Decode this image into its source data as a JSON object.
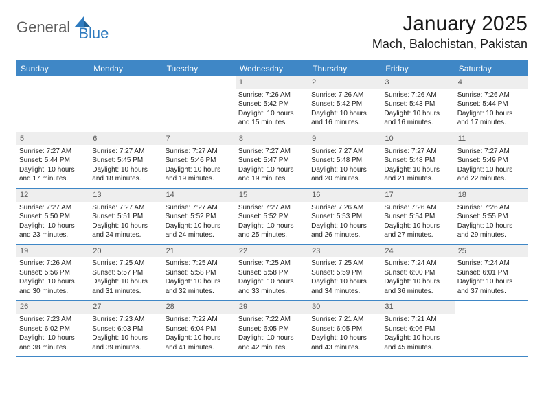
{
  "brand": {
    "word1": "General",
    "word2": "Blue"
  },
  "title": "January 2025",
  "location": "Mach, Balochistan, Pakistan",
  "colors": {
    "header_bg": "#3f87c6",
    "header_text": "#ffffff",
    "daynum_bg": "#eeeeee",
    "border": "#3f87c6",
    "body_text": "#1a1a1a",
    "logo_grey": "#5a5a5a",
    "logo_blue": "#2f7bbf"
  },
  "daysOfWeek": [
    "Sunday",
    "Monday",
    "Tuesday",
    "Wednesday",
    "Thursday",
    "Friday",
    "Saturday"
  ],
  "weeks": [
    [
      {
        "empty": true
      },
      {
        "empty": true
      },
      {
        "empty": true
      },
      {
        "n": "1",
        "sunrise": "Sunrise: 7:26 AM",
        "sunset": "Sunset: 5:42 PM",
        "daylight": "Daylight: 10 hours and 15 minutes."
      },
      {
        "n": "2",
        "sunrise": "Sunrise: 7:26 AM",
        "sunset": "Sunset: 5:42 PM",
        "daylight": "Daylight: 10 hours and 16 minutes."
      },
      {
        "n": "3",
        "sunrise": "Sunrise: 7:26 AM",
        "sunset": "Sunset: 5:43 PM",
        "daylight": "Daylight: 10 hours and 16 minutes."
      },
      {
        "n": "4",
        "sunrise": "Sunrise: 7:26 AM",
        "sunset": "Sunset: 5:44 PM",
        "daylight": "Daylight: 10 hours and 17 minutes."
      }
    ],
    [
      {
        "n": "5",
        "sunrise": "Sunrise: 7:27 AM",
        "sunset": "Sunset: 5:44 PM",
        "daylight": "Daylight: 10 hours and 17 minutes."
      },
      {
        "n": "6",
        "sunrise": "Sunrise: 7:27 AM",
        "sunset": "Sunset: 5:45 PM",
        "daylight": "Daylight: 10 hours and 18 minutes."
      },
      {
        "n": "7",
        "sunrise": "Sunrise: 7:27 AM",
        "sunset": "Sunset: 5:46 PM",
        "daylight": "Daylight: 10 hours and 19 minutes."
      },
      {
        "n": "8",
        "sunrise": "Sunrise: 7:27 AM",
        "sunset": "Sunset: 5:47 PM",
        "daylight": "Daylight: 10 hours and 19 minutes."
      },
      {
        "n": "9",
        "sunrise": "Sunrise: 7:27 AM",
        "sunset": "Sunset: 5:48 PM",
        "daylight": "Daylight: 10 hours and 20 minutes."
      },
      {
        "n": "10",
        "sunrise": "Sunrise: 7:27 AM",
        "sunset": "Sunset: 5:48 PM",
        "daylight": "Daylight: 10 hours and 21 minutes."
      },
      {
        "n": "11",
        "sunrise": "Sunrise: 7:27 AM",
        "sunset": "Sunset: 5:49 PM",
        "daylight": "Daylight: 10 hours and 22 minutes."
      }
    ],
    [
      {
        "n": "12",
        "sunrise": "Sunrise: 7:27 AM",
        "sunset": "Sunset: 5:50 PM",
        "daylight": "Daylight: 10 hours and 23 minutes."
      },
      {
        "n": "13",
        "sunrise": "Sunrise: 7:27 AM",
        "sunset": "Sunset: 5:51 PM",
        "daylight": "Daylight: 10 hours and 24 minutes."
      },
      {
        "n": "14",
        "sunrise": "Sunrise: 7:27 AM",
        "sunset": "Sunset: 5:52 PM",
        "daylight": "Daylight: 10 hours and 24 minutes."
      },
      {
        "n": "15",
        "sunrise": "Sunrise: 7:27 AM",
        "sunset": "Sunset: 5:52 PM",
        "daylight": "Daylight: 10 hours and 25 minutes."
      },
      {
        "n": "16",
        "sunrise": "Sunrise: 7:26 AM",
        "sunset": "Sunset: 5:53 PM",
        "daylight": "Daylight: 10 hours and 26 minutes."
      },
      {
        "n": "17",
        "sunrise": "Sunrise: 7:26 AM",
        "sunset": "Sunset: 5:54 PM",
        "daylight": "Daylight: 10 hours and 27 minutes."
      },
      {
        "n": "18",
        "sunrise": "Sunrise: 7:26 AM",
        "sunset": "Sunset: 5:55 PM",
        "daylight": "Daylight: 10 hours and 29 minutes."
      }
    ],
    [
      {
        "n": "19",
        "sunrise": "Sunrise: 7:26 AM",
        "sunset": "Sunset: 5:56 PM",
        "daylight": "Daylight: 10 hours and 30 minutes."
      },
      {
        "n": "20",
        "sunrise": "Sunrise: 7:25 AM",
        "sunset": "Sunset: 5:57 PM",
        "daylight": "Daylight: 10 hours and 31 minutes."
      },
      {
        "n": "21",
        "sunrise": "Sunrise: 7:25 AM",
        "sunset": "Sunset: 5:58 PM",
        "daylight": "Daylight: 10 hours and 32 minutes."
      },
      {
        "n": "22",
        "sunrise": "Sunrise: 7:25 AM",
        "sunset": "Sunset: 5:58 PM",
        "daylight": "Daylight: 10 hours and 33 minutes."
      },
      {
        "n": "23",
        "sunrise": "Sunrise: 7:25 AM",
        "sunset": "Sunset: 5:59 PM",
        "daylight": "Daylight: 10 hours and 34 minutes."
      },
      {
        "n": "24",
        "sunrise": "Sunrise: 7:24 AM",
        "sunset": "Sunset: 6:00 PM",
        "daylight": "Daylight: 10 hours and 36 minutes."
      },
      {
        "n": "25",
        "sunrise": "Sunrise: 7:24 AM",
        "sunset": "Sunset: 6:01 PM",
        "daylight": "Daylight: 10 hours and 37 minutes."
      }
    ],
    [
      {
        "n": "26",
        "sunrise": "Sunrise: 7:23 AM",
        "sunset": "Sunset: 6:02 PM",
        "daylight": "Daylight: 10 hours and 38 minutes."
      },
      {
        "n": "27",
        "sunrise": "Sunrise: 7:23 AM",
        "sunset": "Sunset: 6:03 PM",
        "daylight": "Daylight: 10 hours and 39 minutes."
      },
      {
        "n": "28",
        "sunrise": "Sunrise: 7:22 AM",
        "sunset": "Sunset: 6:04 PM",
        "daylight": "Daylight: 10 hours and 41 minutes."
      },
      {
        "n": "29",
        "sunrise": "Sunrise: 7:22 AM",
        "sunset": "Sunset: 6:05 PM",
        "daylight": "Daylight: 10 hours and 42 minutes."
      },
      {
        "n": "30",
        "sunrise": "Sunrise: 7:21 AM",
        "sunset": "Sunset: 6:05 PM",
        "daylight": "Daylight: 10 hours and 43 minutes."
      },
      {
        "n": "31",
        "sunrise": "Sunrise: 7:21 AM",
        "sunset": "Sunset: 6:06 PM",
        "daylight": "Daylight: 10 hours and 45 minutes."
      },
      {
        "empty": true
      }
    ]
  ]
}
